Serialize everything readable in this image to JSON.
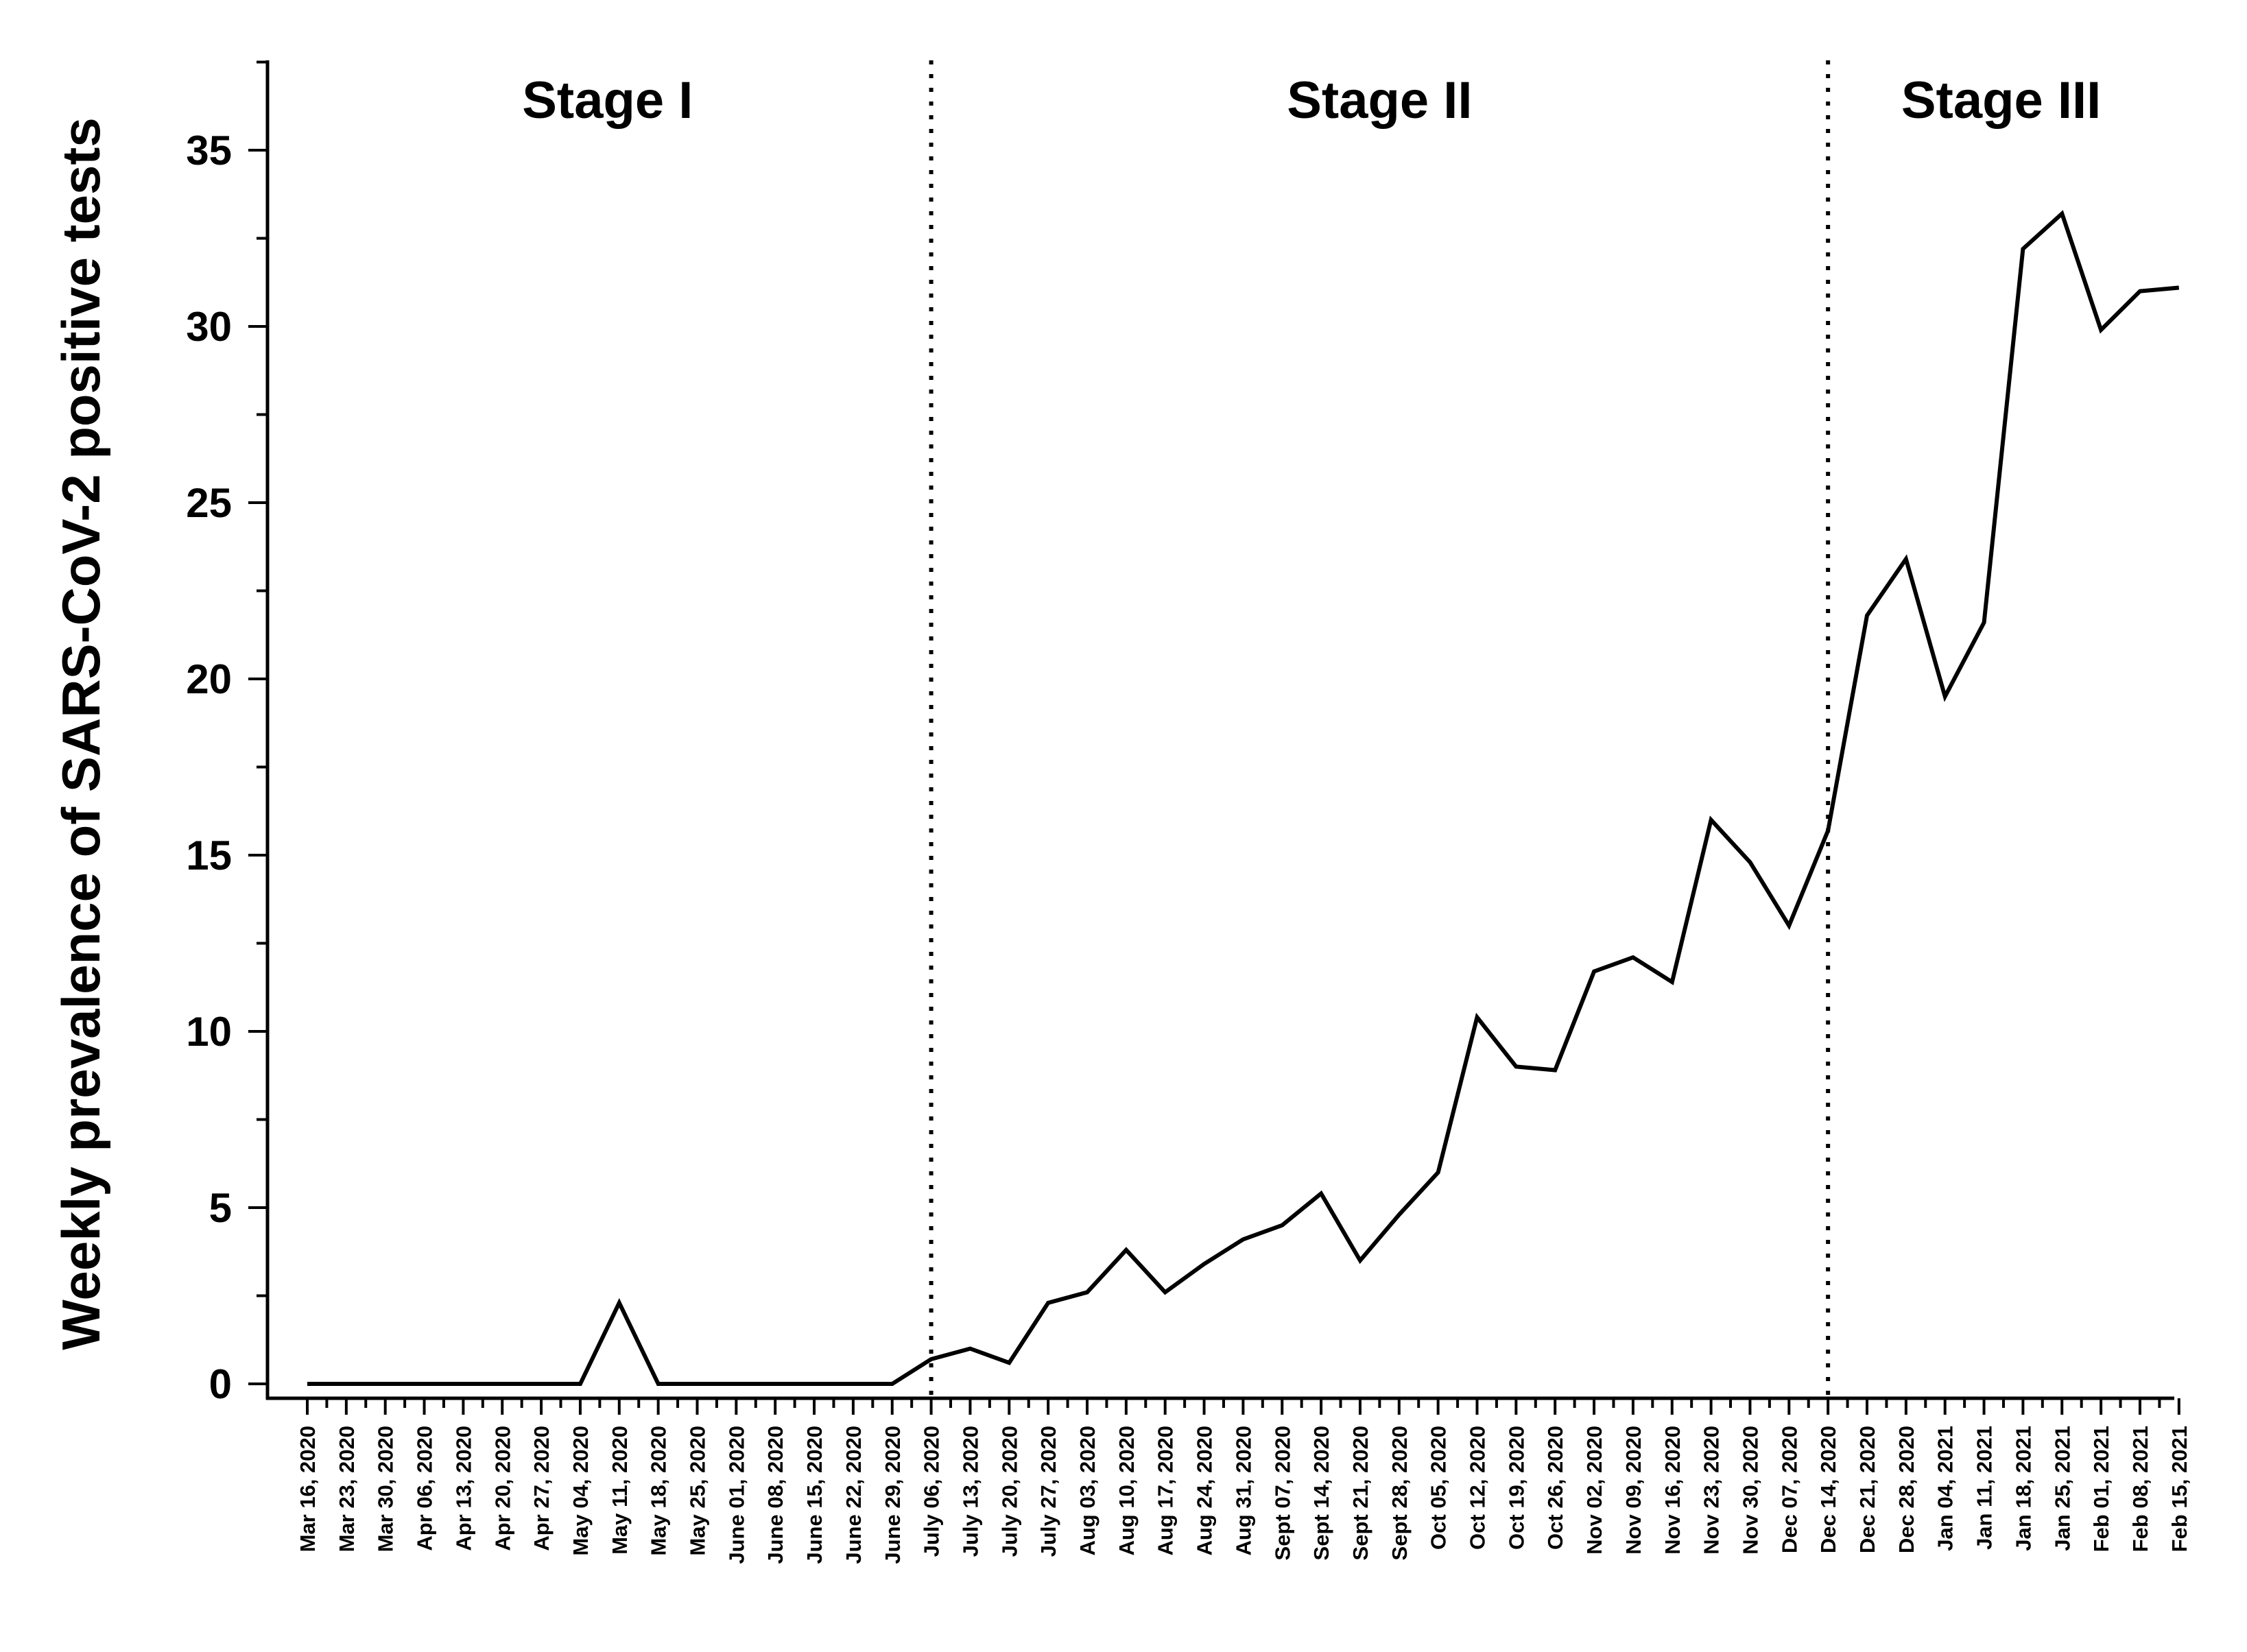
{
  "chart_data": {
    "type": "line",
    "title": "",
    "xlabel": "",
    "ylabel": "Weekly prevalence of SARS-CoV-2 positive tests",
    "ylim": [
      -0.5,
      37.5
    ],
    "yticks": [
      0,
      5,
      10,
      15,
      20,
      25,
      30,
      35
    ],
    "grid": false,
    "legend": "none",
    "line_color": "#000000",
    "x": [
      "Mar 16, 2020",
      "Mar 23, 2020",
      "Mar 30, 2020",
      "Apr 06, 2020",
      "Apr 13, 2020",
      "Apr 20, 2020",
      "Apr 27, 2020",
      "May 04, 2020",
      "May 11, 2020",
      "May 18, 2020",
      "May 25, 2020",
      "June 01, 2020",
      "June 08, 2020",
      "June 15, 2020",
      "June 22, 2020",
      "June 29, 2020",
      "July 06, 2020",
      "July 13, 2020",
      "July 20, 2020",
      "July 27, 2020",
      "Aug 03, 2020",
      "Aug 10, 2020",
      "Aug 17, 2020",
      "Aug 24, 2020",
      "Aug 31, 2020",
      "Sept 07, 2020",
      "Sept 14, 2020",
      "Sept 21, 2020",
      "Sept 28, 2020",
      "Oct 05, 2020",
      "Oct 12, 2020",
      "Oct 19, 2020",
      "Oct 26, 2020",
      "Nov 02, 2020",
      "Nov 09, 2020",
      "Nov 16, 2020",
      "Nov 23, 2020",
      "Nov 30, 2020",
      "Dec 07, 2020",
      "Dec 14, 2020",
      "Dec 21, 2020",
      "Dec 28, 2020",
      "Jan 04, 2021",
      "Jan 11, 2021",
      "Jan 18, 2021",
      "Jan 25, 2021",
      "Feb 01, 2021",
      "Feb 08, 2021",
      "Feb 15, 2021"
    ],
    "series": [
      {
        "values": [
          0,
          0,
          0,
          0,
          0,
          0,
          0,
          0,
          2.3,
          0,
          0,
          0,
          0,
          0,
          0,
          0,
          0.7,
          1.0,
          0.6,
          2.3,
          2.6,
          3.8,
          2.6,
          3.4,
          4.1,
          4.5,
          5.4,
          3.5,
          4.8,
          6.0,
          10.4,
          9.0,
          8.9,
          11.7,
          12.1,
          11.4,
          16.0,
          14.8,
          13.0,
          15.7,
          21.8,
          23.4,
          19.5,
          21.6,
          32.2,
          33.2,
          29.9,
          31.0,
          31.1
        ]
      }
    ],
    "stage_dividers": [
      "July 06, 2020",
      "Dec 14, 2020"
    ],
    "stages": [
      {
        "label": "Stage I"
      },
      {
        "label": "Stage II"
      },
      {
        "label": "Stage III"
      }
    ]
  }
}
